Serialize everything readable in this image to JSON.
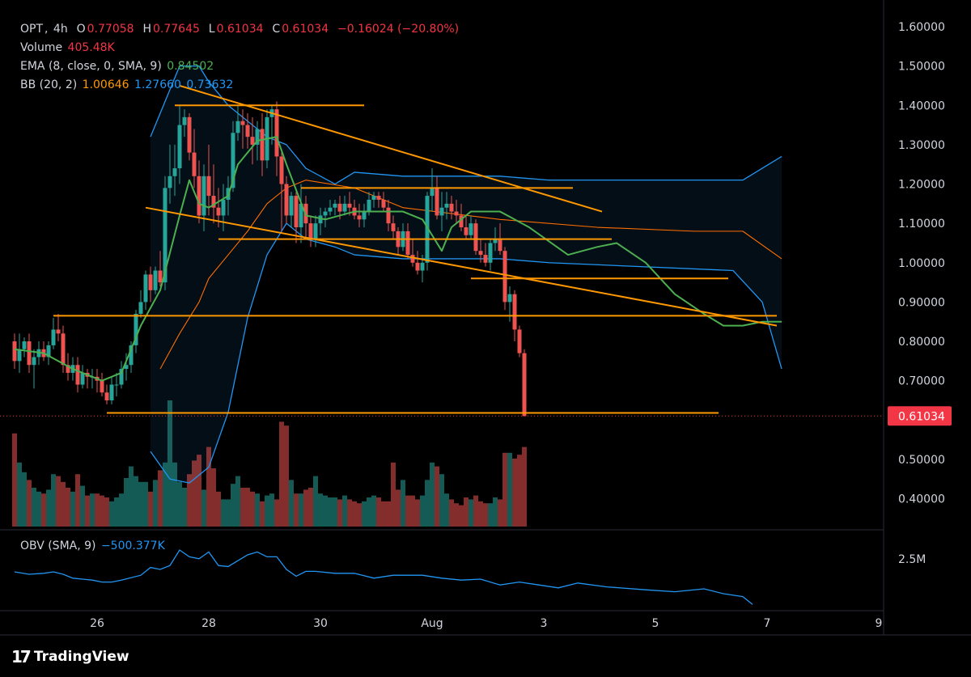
{
  "legend": {
    "symbol": "OPT",
    "interval": "4h",
    "o_label": "O",
    "o": "0.77058",
    "h_label": "H",
    "h": "0.77645",
    "l_label": "L",
    "l": "0.61034",
    "c_label": "C",
    "c": "0.61034",
    "change": "−0.16024 (−20.80%)",
    "volume_label": "Volume",
    "volume": "405.48K",
    "ema_label": "EMA (8, close, 0, SMA, 9)",
    "ema": "0.84502",
    "bb_label": "BB (20, 2)",
    "bb_basis": "1.00646",
    "bb_upper": "1.27660",
    "bb_lower": "0.73632",
    "obv_label": "OBV (SMA, 9)",
    "obv": "−500.377K"
  },
  "brand": {
    "logo": "17",
    "name": "TradingView"
  },
  "colors": {
    "up": "#26a69a",
    "down": "#ef5350",
    "orange": "#ff9800",
    "bb": "#2196f3",
    "ema": "#4caf50",
    "basis": "#ff6d00"
  },
  "chart_data": {
    "type": "candlestick",
    "title": "OPT, 4h",
    "y_axis": {
      "range": [
        0.33,
        1.63
      ],
      "ticks": [
        1.6,
        1.5,
        1.4,
        1.3,
        1.2,
        1.1,
        1.0,
        0.9,
        0.8,
        0.7,
        0.5,
        0.4
      ],
      "tick_labels": [
        "1.60000",
        "1.50000",
        "1.40000",
        "1.30000",
        "1.20000",
        "1.10000",
        "1.00000",
        "0.90000",
        "0.80000",
        "0.70000",
        "0.50000",
        "0.40000"
      ],
      "last_price": 0.61034,
      "last_price_label": "0.61034"
    },
    "x_axis": {
      "range": [
        0,
        158
      ],
      "ticks": [
        {
          "label": "26",
          "x": 17
        },
        {
          "label": "28",
          "x": 40
        },
        {
          "label": "30",
          "x": 63
        },
        {
          "label": "Aug",
          "x": 86
        },
        {
          "label": "3",
          "x": 109
        },
        {
          "label": "5",
          "x": 132
        },
        {
          "label": "7",
          "x": 155
        },
        {
          "label": "9",
          "x": 178
        }
      ]
    },
    "candles_ohlcv": [
      [
        0.8,
        0.82,
        0.73,
        0.75,
        0.48
      ],
      [
        0.75,
        0.82,
        0.72,
        0.78,
        0.33
      ],
      [
        0.78,
        0.81,
        0.76,
        0.8,
        0.28
      ],
      [
        0.8,
        0.82,
        0.72,
        0.74,
        0.24
      ],
      [
        0.74,
        0.78,
        0.68,
        0.76,
        0.2
      ],
      [
        0.76,
        0.8,
        0.74,
        0.78,
        0.18
      ],
      [
        0.78,
        0.8,
        0.75,
        0.76,
        0.17
      ],
      [
        0.76,
        0.8,
        0.74,
        0.79,
        0.19
      ],
      [
        0.79,
        0.86,
        0.78,
        0.83,
        0.27
      ],
      [
        0.83,
        0.87,
        0.8,
        0.82,
        0.26
      ],
      [
        0.82,
        0.84,
        0.72,
        0.74,
        0.23
      ],
      [
        0.74,
        0.77,
        0.7,
        0.72,
        0.2
      ],
      [
        0.72,
        0.76,
        0.7,
        0.74,
        0.18
      ],
      [
        0.74,
        0.76,
        0.67,
        0.69,
        0.27
      ],
      [
        0.69,
        0.74,
        0.68,
        0.72,
        0.21
      ],
      [
        0.72,
        0.73,
        0.68,
        0.71,
        0.16
      ],
      [
        0.71,
        0.73,
        0.68,
        0.71,
        0.17
      ],
      [
        0.71,
        0.73,
        0.67,
        0.7,
        0.17
      ],
      [
        0.7,
        0.72,
        0.66,
        0.67,
        0.16
      ],
      [
        0.67,
        0.69,
        0.64,
        0.65,
        0.15
      ],
      [
        0.65,
        0.71,
        0.64,
        0.69,
        0.13
      ],
      [
        0.69,
        0.72,
        0.66,
        0.69,
        0.15
      ],
      [
        0.69,
        0.75,
        0.68,
        0.73,
        0.17
      ],
      [
        0.73,
        0.77,
        0.7,
        0.74,
        0.25
      ],
      [
        0.74,
        0.8,
        0.72,
        0.79,
        0.31
      ],
      [
        0.79,
        0.88,
        0.77,
        0.87,
        0.26
      ],
      [
        0.87,
        0.93,
        0.86,
        0.9,
        0.23
      ],
      [
        0.9,
        0.98,
        0.88,
        0.97,
        0.23
      ],
      [
        0.97,
        0.99,
        0.9,
        0.93,
        0.18
      ],
      [
        0.93,
        0.99,
        0.92,
        0.98,
        0.24
      ],
      [
        0.98,
        1.03,
        0.94,
        0.95,
        0.29
      ],
      [
        0.95,
        1.22,
        0.93,
        1.19,
        0.33
      ],
      [
        1.19,
        1.3,
        1.15,
        1.22,
        0.65
      ],
      [
        1.22,
        1.3,
        1.17,
        1.24,
        0.33
      ],
      [
        1.24,
        1.4,
        1.2,
        1.35,
        0.23
      ],
      [
        1.35,
        1.39,
        1.32,
        1.37,
        0.2
      ],
      [
        1.37,
        1.38,
        1.26,
        1.28,
        0.27
      ],
      [
        1.28,
        1.34,
        1.19,
        1.22,
        0.34
      ],
      [
        1.22,
        1.26,
        1.1,
        1.12,
        0.37
      ],
      [
        1.12,
        1.25,
        1.08,
        1.22,
        0.19
      ],
      [
        1.22,
        1.3,
        1.12,
        1.17,
        0.41
      ],
      [
        1.17,
        1.25,
        1.1,
        1.14,
        0.3
      ],
      [
        1.14,
        1.19,
        1.09,
        1.12,
        0.18
      ],
      [
        1.12,
        1.2,
        1.08,
        1.16,
        0.14
      ],
      [
        1.16,
        1.22,
        1.12,
        1.19,
        0.14
      ],
      [
        1.19,
        1.36,
        1.18,
        1.33,
        0.22
      ],
      [
        1.33,
        1.4,
        1.31,
        1.36,
        0.26
      ],
      [
        1.36,
        1.39,
        1.29,
        1.35,
        0.2
      ],
      [
        1.35,
        1.38,
        1.29,
        1.32,
        0.2
      ],
      [
        1.32,
        1.37,
        1.25,
        1.3,
        0.18
      ],
      [
        1.3,
        1.36,
        1.26,
        1.34,
        0.17
      ],
      [
        1.34,
        1.38,
        1.22,
        1.26,
        0.13
      ],
      [
        1.26,
        1.39,
        1.24,
        1.37,
        0.16
      ],
      [
        1.37,
        1.4,
        1.3,
        1.39,
        0.17
      ],
      [
        1.39,
        1.41,
        1.22,
        1.27,
        0.14
      ],
      [
        1.27,
        1.29,
        1.08,
        1.2,
        0.54
      ],
      [
        1.2,
        1.22,
        1.1,
        1.12,
        0.52
      ],
      [
        1.12,
        1.18,
        1.09,
        1.17,
        0.24
      ],
      [
        1.17,
        1.18,
        1.05,
        1.09,
        0.17
      ],
      [
        1.09,
        1.2,
        1.05,
        1.15,
        0.17
      ],
      [
        1.15,
        1.17,
        1.06,
        1.1,
        0.19
      ],
      [
        1.1,
        1.12,
        1.04,
        1.06,
        0.2
      ],
      [
        1.06,
        1.12,
        1.04,
        1.1,
        0.26
      ],
      [
        1.1,
        1.14,
        1.07,
        1.12,
        0.17
      ],
      [
        1.12,
        1.14,
        1.09,
        1.13,
        0.16
      ],
      [
        1.13,
        1.16,
        1.12,
        1.14,
        0.15
      ],
      [
        1.14,
        1.16,
        1.12,
        1.15,
        0.15
      ],
      [
        1.15,
        1.17,
        1.11,
        1.13,
        0.14
      ],
      [
        1.13,
        1.17,
        1.12,
        1.15,
        0.16
      ],
      [
        1.15,
        1.18,
        1.12,
        1.14,
        0.14
      ],
      [
        1.14,
        1.16,
        1.11,
        1.12,
        0.13
      ],
      [
        1.12,
        1.15,
        1.09,
        1.11,
        0.12
      ],
      [
        1.11,
        1.15,
        1.09,
        1.13,
        0.13
      ],
      [
        1.13,
        1.18,
        1.12,
        1.16,
        0.15
      ],
      [
        1.16,
        1.18,
        1.14,
        1.17,
        0.16
      ],
      [
        1.17,
        1.18,
        1.14,
        1.16,
        0.15
      ],
      [
        1.16,
        1.18,
        1.13,
        1.14,
        0.13
      ],
      [
        1.14,
        1.16,
        1.08,
        1.1,
        0.13
      ],
      [
        1.1,
        1.12,
        1.06,
        1.08,
        0.33
      ],
      [
        1.08,
        1.09,
        1.02,
        1.04,
        0.19
      ],
      [
        1.04,
        1.1,
        1.03,
        1.08,
        0.24
      ],
      [
        1.08,
        1.1,
        1.01,
        1.02,
        0.16
      ],
      [
        1.02,
        1.06,
        0.99,
        1.0,
        0.16
      ],
      [
        1.0,
        1.03,
        0.97,
        0.98,
        0.14
      ],
      [
        0.98,
        1.02,
        0.95,
        1.0,
        0.16
      ],
      [
        1.0,
        1.18,
        0.98,
        1.17,
        0.24
      ],
      [
        1.17,
        1.24,
        1.13,
        1.19,
        0.33
      ],
      [
        1.19,
        1.22,
        1.11,
        1.12,
        0.31
      ],
      [
        1.12,
        1.18,
        1.08,
        1.14,
        0.27
      ],
      [
        1.14,
        1.18,
        1.11,
        1.15,
        0.17
      ],
      [
        1.15,
        1.17,
        1.11,
        1.13,
        0.14
      ],
      [
        1.13,
        1.16,
        1.1,
        1.12,
        0.12
      ],
      [
        1.12,
        1.15,
        1.08,
        1.09,
        0.11
      ],
      [
        1.09,
        1.12,
        1.06,
        1.07,
        0.15
      ],
      [
        1.07,
        1.12,
        1.06,
        1.1,
        0.14
      ],
      [
        1.1,
        1.11,
        1.02,
        1.03,
        0.16
      ],
      [
        1.03,
        1.06,
        1.0,
        1.02,
        0.13
      ],
      [
        1.02,
        1.05,
        0.99,
        1.0,
        0.12
      ],
      [
        1.0,
        1.06,
        0.98,
        1.05,
        0.12
      ],
      [
        1.05,
        1.09,
        1.03,
        1.06,
        0.15
      ],
      [
        1.06,
        1.1,
        1.02,
        1.03,
        0.14
      ],
      [
        1.03,
        1.04,
        0.88,
        0.9,
        0.38
      ],
      [
        0.9,
        0.94,
        0.85,
        0.92,
        0.38
      ],
      [
        0.92,
        0.93,
        0.8,
        0.83,
        0.35
      ],
      [
        0.83,
        0.84,
        0.76,
        0.77,
        0.37
      ],
      [
        0.77,
        0.78,
        0.61,
        0.61,
        0.41
      ]
    ],
    "bollinger_upper": [
      [
        28,
        1.32
      ],
      [
        34,
        1.5
      ],
      [
        38,
        1.5
      ],
      [
        40,
        1.46
      ],
      [
        44,
        1.4
      ],
      [
        46,
        1.38
      ],
      [
        48,
        1.36
      ],
      [
        52,
        1.32
      ],
      [
        56,
        1.3
      ],
      [
        60,
        1.24
      ],
      [
        66,
        1.2
      ],
      [
        70,
        1.23
      ],
      [
        80,
        1.22
      ],
      [
        100,
        1.22
      ],
      [
        110,
        1.21
      ],
      [
        150,
        1.21
      ],
      [
        158,
        1.27
      ]
    ],
    "bollinger_lower": [
      [
        28,
        0.52
      ],
      [
        32,
        0.45
      ],
      [
        36,
        0.44
      ],
      [
        40,
        0.48
      ],
      [
        44,
        0.62
      ],
      [
        48,
        0.86
      ],
      [
        52,
        1.02
      ],
      [
        56,
        1.1
      ],
      [
        60,
        1.06
      ],
      [
        66,
        1.04
      ],
      [
        70,
        1.02
      ],
      [
        80,
        1.01
      ],
      [
        100,
        1.01
      ],
      [
        110,
        1.0
      ],
      [
        148,
        0.98
      ],
      [
        154,
        0.9
      ],
      [
        158,
        0.73
      ]
    ],
    "bollinger_basis": [
      [
        30,
        0.73
      ],
      [
        34,
        0.82
      ],
      [
        38,
        0.9
      ],
      [
        40,
        0.96
      ],
      [
        44,
        1.02
      ],
      [
        48,
        1.08
      ],
      [
        52,
        1.15
      ],
      [
        56,
        1.19
      ],
      [
        60,
        1.21
      ],
      [
        70,
        1.19
      ],
      [
        80,
        1.14
      ],
      [
        100,
        1.11
      ],
      [
        120,
        1.09
      ],
      [
        140,
        1.08
      ],
      [
        150,
        1.08
      ],
      [
        158,
        1.01
      ]
    ],
    "ema_series": [
      [
        0,
        0.78
      ],
      [
        6,
        0.77
      ],
      [
        12,
        0.73
      ],
      [
        18,
        0.7
      ],
      [
        22,
        0.72
      ],
      [
        26,
        0.84
      ],
      [
        30,
        0.93
      ],
      [
        34,
        1.12
      ],
      [
        36,
        1.21
      ],
      [
        38,
        1.15
      ],
      [
        40,
        1.14
      ],
      [
        44,
        1.17
      ],
      [
        46,
        1.25
      ],
      [
        50,
        1.31
      ],
      [
        54,
        1.32
      ],
      [
        56,
        1.25
      ],
      [
        60,
        1.12
      ],
      [
        64,
        1.11
      ],
      [
        70,
        1.13
      ],
      [
        80,
        1.13
      ],
      [
        84,
        1.11
      ],
      [
        88,
        1.03
      ],
      [
        90,
        1.09
      ],
      [
        94,
        1.13
      ],
      [
        100,
        1.13
      ],
      [
        106,
        1.09
      ],
      [
        114,
        1.02
      ],
      [
        120,
        1.04
      ],
      [
        124,
        1.05
      ],
      [
        130,
        1.0
      ],
      [
        136,
        0.92
      ],
      [
        142,
        0.87
      ],
      [
        146,
        0.84
      ],
      [
        150,
        0.84
      ],
      [
        154,
        0.85
      ],
      [
        158,
        0.85
      ]
    ],
    "trendlines": [
      {
        "name": "upper-channel",
        "points": [
          [
            34,
            1.45
          ],
          [
            121,
            1.13
          ]
        ]
      },
      {
        "name": "lower-channel",
        "points": [
          [
            27,
            1.14
          ],
          [
            157,
            0.84
          ]
        ]
      },
      {
        "name": "resistance-1.40",
        "points": [
          [
            33,
            1.4
          ],
          [
            72,
            1.4
          ]
        ]
      },
      {
        "name": "range-top-1.19",
        "points": [
          [
            59,
            1.19
          ],
          [
            115,
            1.19
          ]
        ]
      },
      {
        "name": "range-bottom-1.06",
        "points": [
          [
            42,
            1.06
          ],
          [
            123,
            1.06
          ]
        ]
      },
      {
        "name": "support-0.96",
        "points": [
          [
            94,
            0.96
          ],
          [
            147,
            0.96
          ]
        ]
      },
      {
        "name": "support-0.865",
        "points": [
          [
            8,
            0.865
          ],
          [
            157,
            0.865
          ]
        ]
      },
      {
        "name": "support-0.62",
        "points": [
          [
            19,
            0.618
          ],
          [
            145,
            0.618
          ]
        ]
      }
    ],
    "obv": {
      "label": "OBV (SMA, 9)",
      "value": "−500.377K",
      "y_tick_label": "2.5M",
      "range": [
        0,
        100
      ],
      "series": [
        [
          0,
          55
        ],
        [
          3,
          50
        ],
        [
          6,
          52
        ],
        [
          8,
          55
        ],
        [
          10,
          50
        ],
        [
          12,
          42
        ],
        [
          14,
          40
        ],
        [
          16,
          38
        ],
        [
          18,
          34
        ],
        [
          20,
          34
        ],
        [
          22,
          38
        ],
        [
          26,
          48
        ],
        [
          28,
          64
        ],
        [
          30,
          60
        ],
        [
          32,
          68
        ],
        [
          34,
          100
        ],
        [
          36,
          86
        ],
        [
          38,
          82
        ],
        [
          40,
          96
        ],
        [
          42,
          68
        ],
        [
          44,
          66
        ],
        [
          46,
          78
        ],
        [
          48,
          90
        ],
        [
          50,
          96
        ],
        [
          52,
          86
        ],
        [
          54,
          86
        ],
        [
          56,
          60
        ],
        [
          58,
          46
        ],
        [
          60,
          56
        ],
        [
          62,
          56
        ],
        [
          66,
          52
        ],
        [
          70,
          52
        ],
        [
          74,
          42
        ],
        [
          78,
          48
        ],
        [
          84,
          48
        ],
        [
          88,
          42
        ],
        [
          92,
          38
        ],
        [
          96,
          40
        ],
        [
          100,
          28
        ],
        [
          104,
          34
        ],
        [
          108,
          28
        ],
        [
          112,
          22
        ],
        [
          116,
          32
        ],
        [
          122,
          24
        ],
        [
          130,
          18
        ],
        [
          136,
          14
        ],
        [
          142,
          20
        ],
        [
          146,
          10
        ],
        [
          150,
          4
        ],
        [
          152,
          -12
        ]
      ]
    }
  }
}
